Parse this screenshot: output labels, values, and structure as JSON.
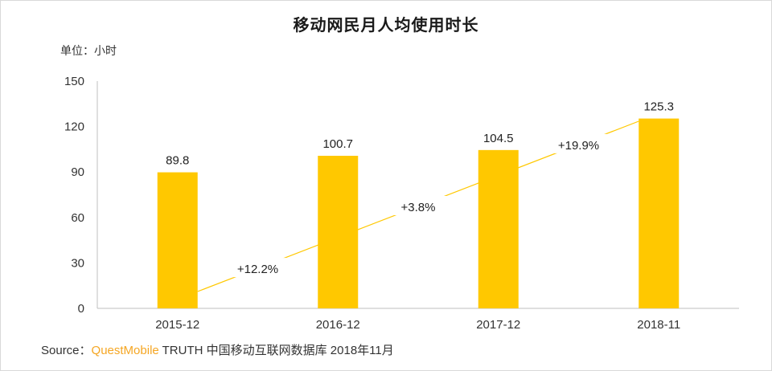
{
  "chart_data": {
    "type": "bar",
    "title": "移动网民月人均使用时长",
    "unit_label": "单位：小时",
    "categories": [
      "2015-12",
      "2016-12",
      "2017-12",
      "2018-11"
    ],
    "values": [
      89.8,
      100.7,
      104.5,
      125.3
    ],
    "value_labels": [
      "89.8",
      "100.7",
      "104.5",
      "125.3"
    ],
    "growth_labels": [
      "+12.2%",
      "+3.8%",
      "+19.9%"
    ],
    "ylim": [
      0,
      150
    ],
    "yticks": [
      "0",
      "30",
      "60",
      "90",
      "120",
      "150"
    ],
    "ytick_values": [
      0,
      30,
      60,
      90,
      120,
      150
    ],
    "grid": false,
    "bar_color": "#FFC800",
    "trend_color": "#FFC800"
  },
  "source": {
    "prefix": "Source：",
    "brand": "QuestMobile",
    "text": " TRUTH 中国移动互联网数据库 2018年11月"
  }
}
